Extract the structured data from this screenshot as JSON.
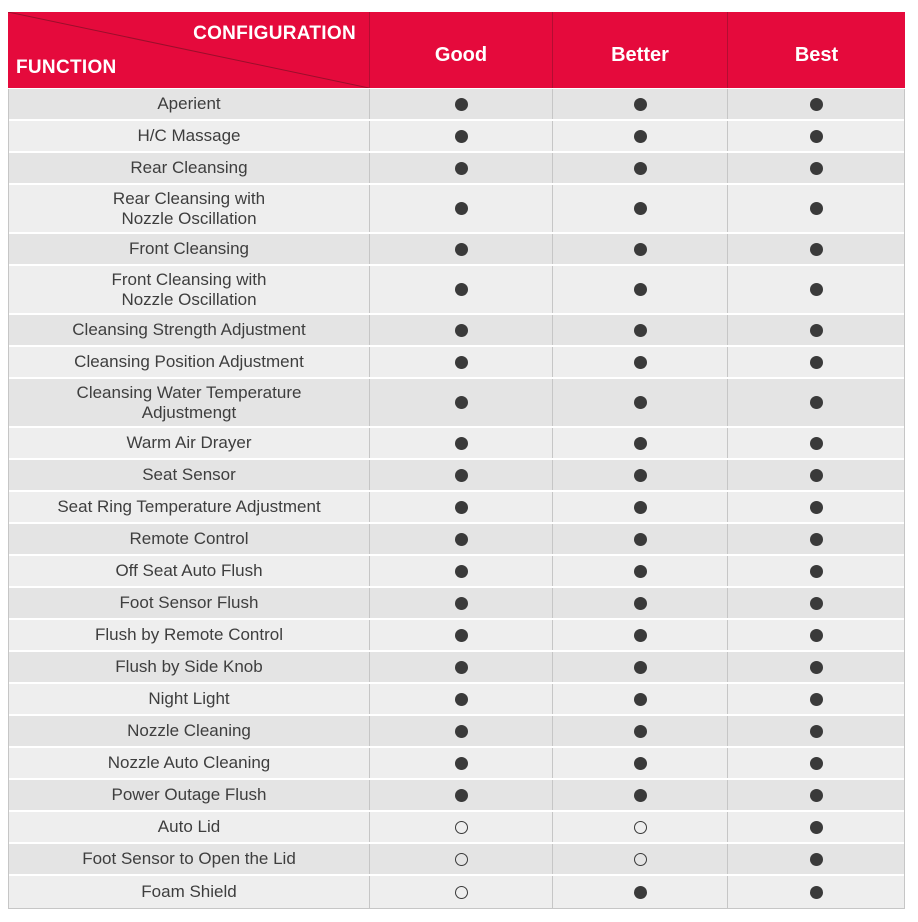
{
  "header": {
    "configuration_label": "CONFIGURATION"
  },
  "symbols": {
    "filled": "●",
    "open": "○"
  },
  "colors": {
    "header_bg": "#E50A3C",
    "header_text": "#FFFFFF",
    "header_divider": "#B30D32",
    "diagonal_line": "#9B0E2B",
    "row_dark": "#E4E4E4",
    "row_light": "#EEEEEE",
    "border": "#C6C6C6",
    "dot": "#3A3A3A",
    "text": "#3E3E3E"
  },
  "chart_data": {
    "type": "table",
    "title": "",
    "columns": [
      "FUNCTION",
      "Good",
      "Better",
      "Best"
    ],
    "legend_position": "none",
    "rows": [
      [
        "Aperient",
        "●",
        "●",
        "●"
      ],
      [
        "H/C Massage",
        "●",
        "●",
        "●"
      ],
      [
        "Rear Cleansing",
        "●",
        "●",
        "●"
      ],
      [
        "Rear Cleansing with\nNozzle Oscillation",
        "●",
        "●",
        "●"
      ],
      [
        "Front Cleansing",
        "●",
        "●",
        "●"
      ],
      [
        "Front Cleansing with\nNozzle Oscillation",
        "●",
        "●",
        "●"
      ],
      [
        "Cleansing Strength Adjustment",
        "●",
        "●",
        "●"
      ],
      [
        "Cleansing Position Adjustment",
        "●",
        "●",
        "●"
      ],
      [
        "Cleansing Water Temperature\nAdjustmengt",
        "●",
        "●",
        "●"
      ],
      [
        "Warm Air Drayer",
        "●",
        "●",
        "●"
      ],
      [
        "Seat Sensor",
        "●",
        "●",
        "●"
      ],
      [
        "Seat Ring Temperature Adjustment",
        "●",
        "●",
        "●"
      ],
      [
        "Remote Control",
        "●",
        "●",
        "●"
      ],
      [
        "Off Seat Auto Flush",
        "●",
        "●",
        "●"
      ],
      [
        "Foot Sensor Flush",
        "●",
        "●",
        "●"
      ],
      [
        "Flush by Remote Control",
        "●",
        "●",
        "●"
      ],
      [
        "Flush by Side Knob",
        "●",
        "●",
        "●"
      ],
      [
        "Night Light",
        "●",
        "●",
        "●"
      ],
      [
        "Nozzle Cleaning",
        "●",
        "●",
        "●"
      ],
      [
        "Nozzle Auto Cleaning",
        "●",
        "●",
        "●"
      ],
      [
        "Power Outage Flush",
        "●",
        "●",
        "●"
      ],
      [
        "Auto Lid",
        "○",
        "○",
        "●"
      ],
      [
        "Foot Sensor to Open the Lid",
        "○",
        "○",
        "●"
      ],
      [
        "Foam Shield",
        "○",
        "●",
        "●"
      ]
    ]
  }
}
